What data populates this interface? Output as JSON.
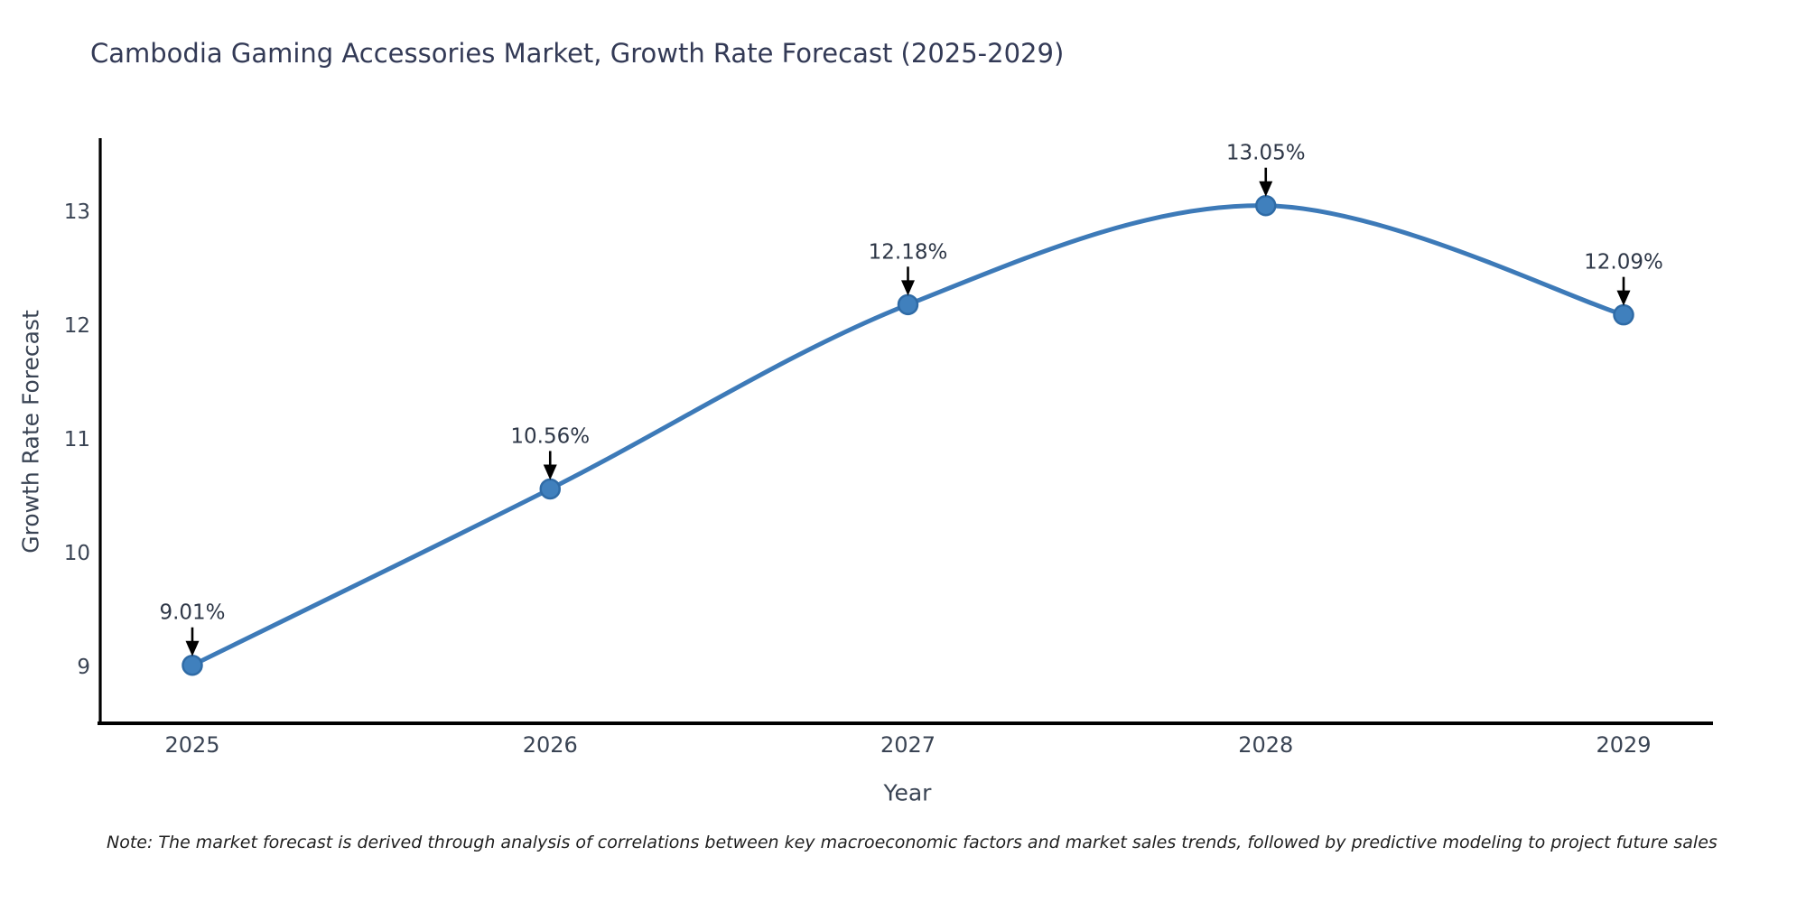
{
  "title": "Cambodia Gaming Accessories Market, Growth Rate Forecast (2025-2029)",
  "note": "Note: The market forecast is derived through analysis of correlations between key macroeconomic factors and market sales trends, followed by predictive modeling to project future sales",
  "chart_data": {
    "type": "line",
    "title": "Cambodia Gaming Accessories Market, Growth Rate Forecast (2025-2029)",
    "xlabel": "Year",
    "ylabel": "Growth Rate Forecast",
    "categories": [
      "2025",
      "2026",
      "2027",
      "2028",
      "2029"
    ],
    "x": [
      2025,
      2026,
      2027,
      2028,
      2029
    ],
    "values": [
      9.01,
      10.56,
      12.18,
      13.05,
      12.09
    ],
    "point_labels": [
      "9.01%",
      "10.56%",
      "12.18%",
      "13.05%",
      "12.09%"
    ],
    "yticks": [
      9,
      10,
      11,
      12,
      13
    ],
    "ylim": [
      8.55,
      13.6
    ],
    "grid": false,
    "legend_position": "none",
    "colors": {
      "line": "#3d7ab8",
      "marker_fill": "#4080bd",
      "marker_edge": "#2f6ba6",
      "spine": "#000000",
      "tick_text": "#3a4454",
      "annotation_text": "#2e3747",
      "arrow": "#000000"
    }
  }
}
